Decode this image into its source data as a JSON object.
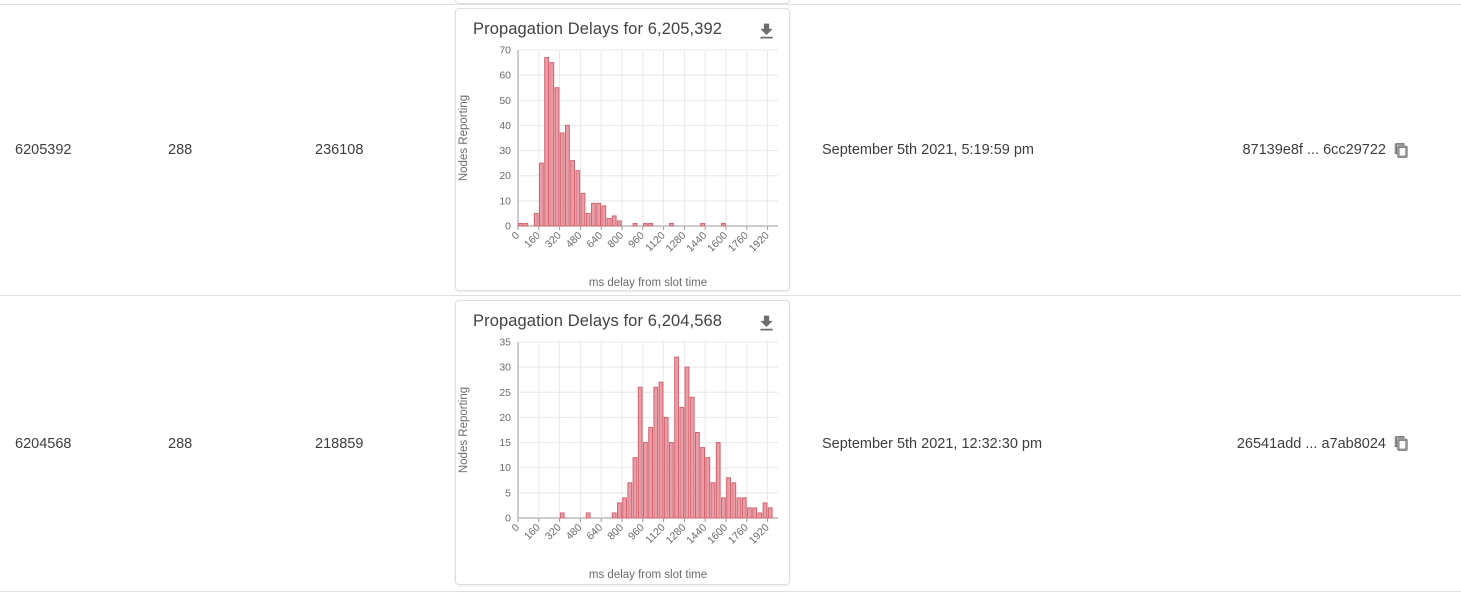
{
  "colors": {
    "bar_fill": "#e99da7",
    "bar_border": "#d2636f",
    "grid": "#e8e8e8",
    "axis": "#9a9a9a",
    "icon": "#757575",
    "separator": "#e0e0e0"
  },
  "table": {
    "rows": [
      {
        "col1": "6205392",
        "col2": "288",
        "col3": "236108",
        "timestamp": "September 5th 2021, 5:19:59 pm",
        "hash": "87139e8f ... 6cc29722"
      },
      {
        "col1": "6204568",
        "col2": "288",
        "col3": "218859",
        "timestamp": "September 5th 2021, 12:32:30 pm",
        "hash": "26541add ... a7ab8024"
      }
    ]
  },
  "chart_data": [
    {
      "type": "bar",
      "title": "Propagation Delays for 6,205,392",
      "xlabel": "ms delay from slot time",
      "ylabel": "Nodes Reporting",
      "ylim": [
        0,
        70
      ],
      "ytick_step": 10,
      "x_start_ms": 0,
      "bin_width_ms": 40,
      "xmax_ms": 2000,
      "xticks": [
        0,
        160,
        320,
        480,
        640,
        800,
        960,
        1120,
        1280,
        1440,
        1600,
        1760,
        1920
      ],
      "values": [
        1,
        1,
        0,
        5,
        25,
        67,
        65,
        55,
        37,
        40,
        26,
        22,
        13,
        5,
        9,
        9,
        8,
        3,
        4,
        2,
        0,
        0,
        1,
        0,
        1,
        1,
        0,
        0,
        0,
        1,
        0,
        0,
        0,
        0,
        0,
        1,
        0,
        0,
        0,
        1,
        0,
        0,
        0,
        0,
        0,
        0,
        0,
        0,
        0,
        0
      ],
      "legend": "none",
      "grid": "on"
    },
    {
      "type": "bar",
      "title": "Propagation Delays for 6,204,568",
      "xlabel": "ms delay from slot time",
      "ylabel": "Nodes Reporting",
      "ylim": [
        0,
        35
      ],
      "ytick_step": 5,
      "x_start_ms": 0,
      "bin_width_ms": 40,
      "xmax_ms": 2000,
      "xticks": [
        0,
        160,
        320,
        480,
        640,
        800,
        960,
        1120,
        1280,
        1440,
        1600,
        1760,
        1920
      ],
      "values": [
        0,
        0,
        0,
        0,
        0,
        0,
        0,
        0,
        1,
        0,
        0,
        0,
        0,
        1,
        0,
        0,
        0,
        0,
        1,
        3,
        4,
        7,
        12,
        26,
        15,
        18,
        26,
        27,
        20,
        15,
        32,
        22,
        30,
        24,
        17,
        14,
        12,
        7,
        15,
        4,
        8,
        7,
        4,
        4,
        2,
        2,
        1,
        3,
        2,
        0
      ],
      "legend": "none",
      "grid": "on"
    }
  ]
}
